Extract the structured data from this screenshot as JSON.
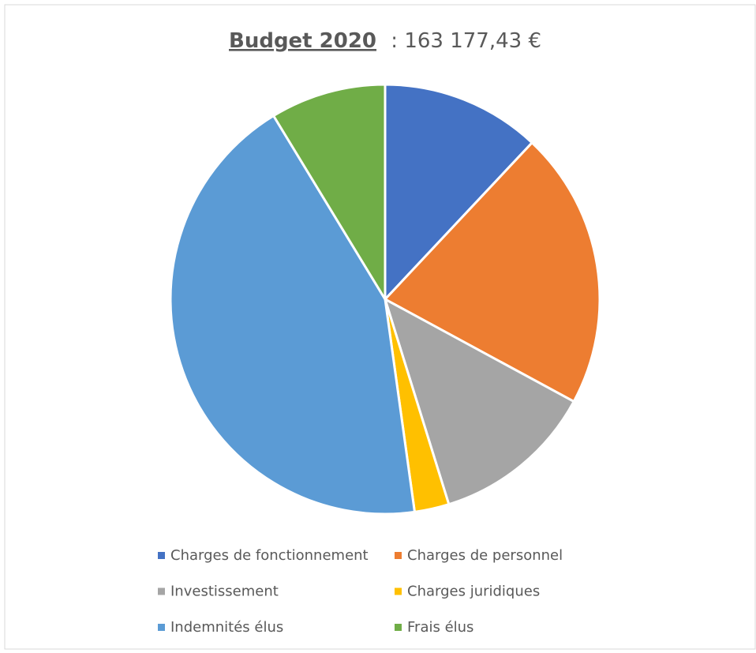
{
  "chart_data": {
    "type": "pie",
    "title": "Budget 2020",
    "subtitle": ": 163 177,43 €",
    "categories": [
      "Charges de fonctionnement",
      "Charges de personnel",
      "Investissement",
      "Charges juridiques",
      "Indemnités élus",
      "Frais élus"
    ],
    "values": [
      12,
      20.9,
      12.3,
      2.6,
      43.5,
      8.7
    ],
    "colors": [
      "#4472c4",
      "#ed7d31",
      "#a5a5a5",
      "#ffc000",
      "#5b9bd5",
      "#70ad47"
    ],
    "legend": "bottom"
  }
}
